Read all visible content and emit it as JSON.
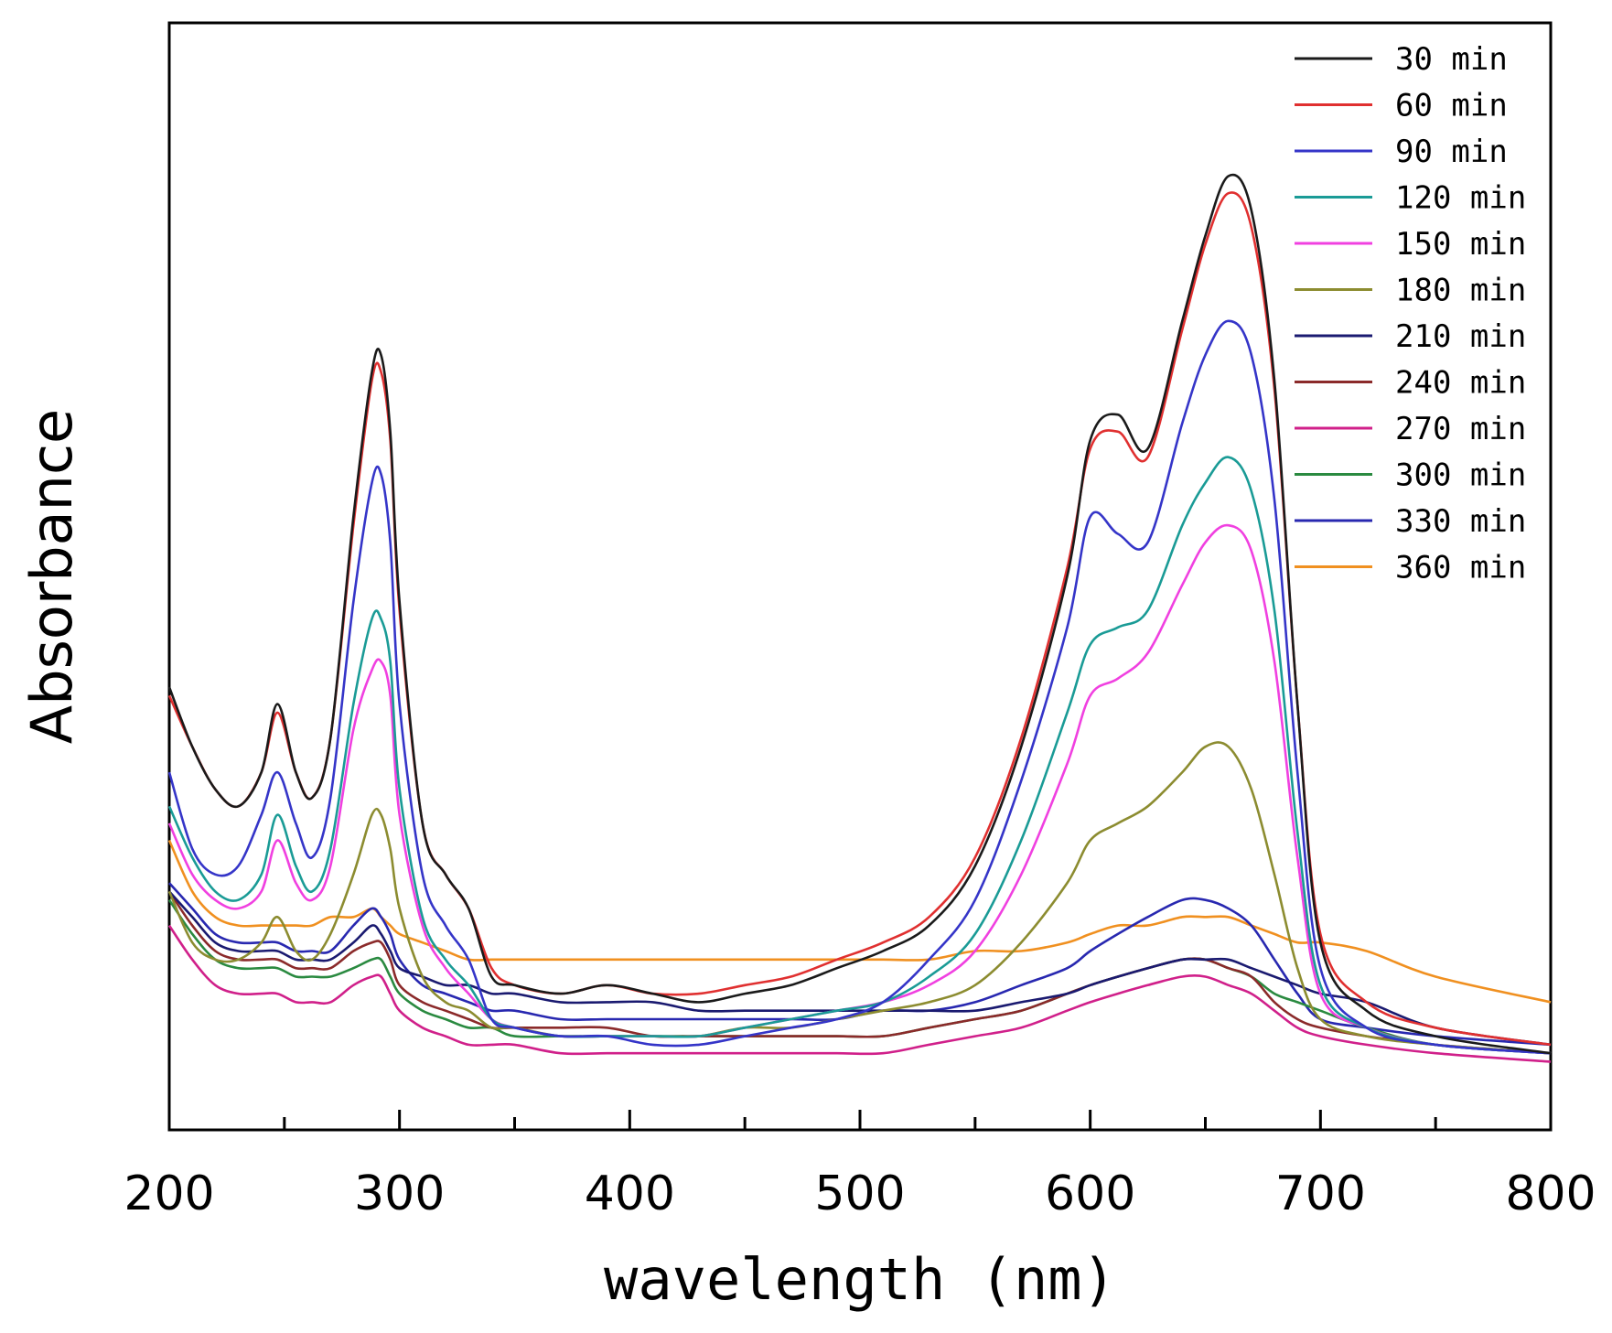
{
  "chart_data": {
    "type": "line",
    "title": "",
    "xlabel": "wavelength (nm)",
    "ylabel": "Absorbance",
    "xlim": [
      200,
      800
    ],
    "ylim": [
      0,
      1.3
    ],
    "y_ticks_shown": false,
    "grid": false,
    "legend_position": "top-right",
    "x_ticks": [
      200,
      300,
      400,
      500,
      600,
      700,
      800
    ],
    "x": [
      200,
      210,
      220,
      230,
      240,
      247,
      255,
      262,
      270,
      280,
      288,
      292,
      296,
      300,
      310,
      320,
      330,
      340,
      350,
      370,
      390,
      410,
      430,
      450,
      470,
      490,
      510,
      530,
      550,
      570,
      590,
      600,
      612,
      625,
      640,
      650,
      660,
      670,
      680,
      690,
      700,
      720,
      750,
      800
    ],
    "series": [
      {
        "name": "30 min",
        "color": "#1a1a1a",
        "values": [
          0.52,
          0.45,
          0.4,
          0.38,
          0.42,
          0.5,
          0.42,
          0.39,
          0.46,
          0.72,
          0.89,
          0.91,
          0.82,
          0.62,
          0.36,
          0.3,
          0.26,
          0.18,
          0.17,
          0.16,
          0.17,
          0.16,
          0.15,
          0.16,
          0.17,
          0.19,
          0.21,
          0.24,
          0.31,
          0.45,
          0.65,
          0.81,
          0.84,
          0.8,
          0.95,
          1.05,
          1.12,
          1.08,
          0.88,
          0.5,
          0.22,
          0.14,
          0.11,
          0.09
        ]
      },
      {
        "name": "60 min",
        "color": "#e03030",
        "values": [
          0.51,
          0.45,
          0.4,
          0.38,
          0.42,
          0.49,
          0.42,
          0.39,
          0.46,
          0.71,
          0.88,
          0.89,
          0.81,
          0.61,
          0.36,
          0.3,
          0.26,
          0.19,
          0.17,
          0.16,
          0.17,
          0.16,
          0.16,
          0.17,
          0.18,
          0.2,
          0.22,
          0.25,
          0.32,
          0.46,
          0.66,
          0.8,
          0.82,
          0.79,
          0.94,
          1.04,
          1.1,
          1.06,
          0.87,
          0.5,
          0.23,
          0.15,
          0.12,
          0.1
        ]
      },
      {
        "name": "90 min",
        "color": "#3535c8",
        "values": [
          0.42,
          0.33,
          0.3,
          0.31,
          0.37,
          0.42,
          0.36,
          0.32,
          0.39,
          0.62,
          0.76,
          0.77,
          0.69,
          0.5,
          0.3,
          0.24,
          0.2,
          0.13,
          0.12,
          0.11,
          0.11,
          0.1,
          0.1,
          0.11,
          0.12,
          0.13,
          0.15,
          0.2,
          0.27,
          0.41,
          0.59,
          0.72,
          0.7,
          0.69,
          0.83,
          0.91,
          0.95,
          0.91,
          0.74,
          0.42,
          0.19,
          0.12,
          0.1,
          0.09
        ]
      },
      {
        "name": "120 min",
        "color": "#1a9b96",
        "values": [
          0.38,
          0.32,
          0.28,
          0.27,
          0.3,
          0.37,
          0.31,
          0.28,
          0.33,
          0.5,
          0.6,
          0.6,
          0.55,
          0.4,
          0.25,
          0.2,
          0.17,
          0.13,
          0.12,
          0.11,
          0.11,
          0.11,
          0.11,
          0.12,
          0.13,
          0.14,
          0.15,
          0.18,
          0.23,
          0.34,
          0.49,
          0.57,
          0.59,
          0.61,
          0.71,
          0.76,
          0.79,
          0.75,
          0.61,
          0.35,
          0.17,
          0.12,
          0.1,
          0.09
        ]
      },
      {
        "name": "150 min",
        "color": "#f040e0",
        "values": [
          0.36,
          0.3,
          0.27,
          0.26,
          0.28,
          0.34,
          0.29,
          0.27,
          0.31,
          0.47,
          0.54,
          0.55,
          0.51,
          0.37,
          0.24,
          0.19,
          0.16,
          0.13,
          0.12,
          0.11,
          0.11,
          0.11,
          0.11,
          0.12,
          0.13,
          0.14,
          0.15,
          0.17,
          0.21,
          0.3,
          0.43,
          0.51,
          0.53,
          0.56,
          0.64,
          0.69,
          0.71,
          0.68,
          0.55,
          0.32,
          0.16,
          0.12,
          0.1,
          0.09
        ]
      },
      {
        "name": "180 min",
        "color": "#8c8c30",
        "values": [
          0.28,
          0.22,
          0.2,
          0.2,
          0.22,
          0.25,
          0.21,
          0.2,
          0.23,
          0.3,
          0.37,
          0.37,
          0.33,
          0.26,
          0.18,
          0.15,
          0.14,
          0.12,
          0.12,
          0.11,
          0.11,
          0.11,
          0.11,
          0.12,
          0.12,
          0.13,
          0.14,
          0.15,
          0.17,
          0.22,
          0.29,
          0.34,
          0.36,
          0.38,
          0.42,
          0.45,
          0.45,
          0.4,
          0.3,
          0.19,
          0.13,
          0.11,
          0.1,
          0.09
        ]
      },
      {
        "name": "210 min",
        "color": "#1a1a70",
        "values": [
          0.28,
          0.25,
          0.22,
          0.21,
          0.21,
          0.21,
          0.2,
          0.2,
          0.2,
          0.22,
          0.24,
          0.23,
          0.21,
          0.19,
          0.18,
          0.17,
          0.17,
          0.16,
          0.16,
          0.15,
          0.15,
          0.15,
          0.14,
          0.14,
          0.14,
          0.14,
          0.14,
          0.14,
          0.14,
          0.15,
          0.16,
          0.17,
          0.18,
          0.19,
          0.2,
          0.2,
          0.2,
          0.19,
          0.18,
          0.17,
          0.16,
          0.15,
          0.12,
          0.1
        ]
      },
      {
        "name": "240 min",
        "color": "#8b2a2a",
        "values": [
          0.28,
          0.24,
          0.21,
          0.2,
          0.2,
          0.2,
          0.19,
          0.19,
          0.19,
          0.21,
          0.22,
          0.22,
          0.2,
          0.17,
          0.15,
          0.14,
          0.13,
          0.12,
          0.12,
          0.12,
          0.12,
          0.11,
          0.11,
          0.11,
          0.11,
          0.11,
          0.11,
          0.12,
          0.13,
          0.14,
          0.16,
          0.17,
          0.18,
          0.19,
          0.2,
          0.2,
          0.19,
          0.18,
          0.15,
          0.13,
          0.12,
          0.11,
          0.1,
          0.09
        ]
      },
      {
        "name": "270 min",
        "color": "#d0208a",
        "values": [
          0.24,
          0.2,
          0.17,
          0.16,
          0.16,
          0.16,
          0.15,
          0.15,
          0.15,
          0.17,
          0.18,
          0.18,
          0.16,
          0.14,
          0.12,
          0.11,
          0.1,
          0.1,
          0.1,
          0.09,
          0.09,
          0.09,
          0.09,
          0.09,
          0.09,
          0.09,
          0.09,
          0.1,
          0.11,
          0.12,
          0.14,
          0.15,
          0.16,
          0.17,
          0.18,
          0.18,
          0.17,
          0.16,
          0.14,
          0.12,
          0.11,
          0.1,
          0.09,
          0.08
        ]
      },
      {
        "name": "300 min",
        "color": "#2a8a40",
        "values": [
          0.27,
          0.23,
          0.2,
          0.19,
          0.19,
          0.19,
          0.18,
          0.18,
          0.18,
          0.19,
          0.2,
          0.2,
          0.18,
          0.16,
          0.14,
          0.13,
          0.12,
          0.12,
          0.11,
          0.11,
          0.11,
          0.11,
          0.11,
          0.11,
          0.11,
          0.11,
          0.11,
          0.12,
          0.13,
          0.14,
          0.16,
          0.17,
          0.18,
          0.19,
          0.2,
          0.2,
          0.19,
          0.18,
          0.16,
          0.15,
          0.14,
          0.12,
          0.1,
          0.09
        ]
      },
      {
        "name": "330 min",
        "color": "#2828b0",
        "values": [
          0.29,
          0.26,
          0.23,
          0.22,
          0.22,
          0.22,
          0.21,
          0.21,
          0.21,
          0.24,
          0.26,
          0.25,
          0.23,
          0.2,
          0.17,
          0.16,
          0.15,
          0.14,
          0.14,
          0.13,
          0.13,
          0.13,
          0.13,
          0.13,
          0.13,
          0.13,
          0.14,
          0.14,
          0.15,
          0.17,
          0.19,
          0.21,
          0.23,
          0.25,
          0.27,
          0.27,
          0.26,
          0.24,
          0.2,
          0.16,
          0.13,
          0.12,
          0.11,
          0.1
        ]
      },
      {
        "name": "360 min",
        "color": "#f09020",
        "values": [
          0.34,
          0.28,
          0.25,
          0.24,
          0.24,
          0.24,
          0.24,
          0.24,
          0.25,
          0.25,
          0.26,
          0.25,
          0.24,
          0.23,
          0.22,
          0.21,
          0.2,
          0.2,
          0.2,
          0.2,
          0.2,
          0.2,
          0.2,
          0.2,
          0.2,
          0.2,
          0.2,
          0.2,
          0.21,
          0.21,
          0.22,
          0.23,
          0.24,
          0.24,
          0.25,
          0.25,
          0.25,
          0.24,
          0.23,
          0.22,
          0.22,
          0.21,
          0.18,
          0.15
        ]
      }
    ]
  }
}
